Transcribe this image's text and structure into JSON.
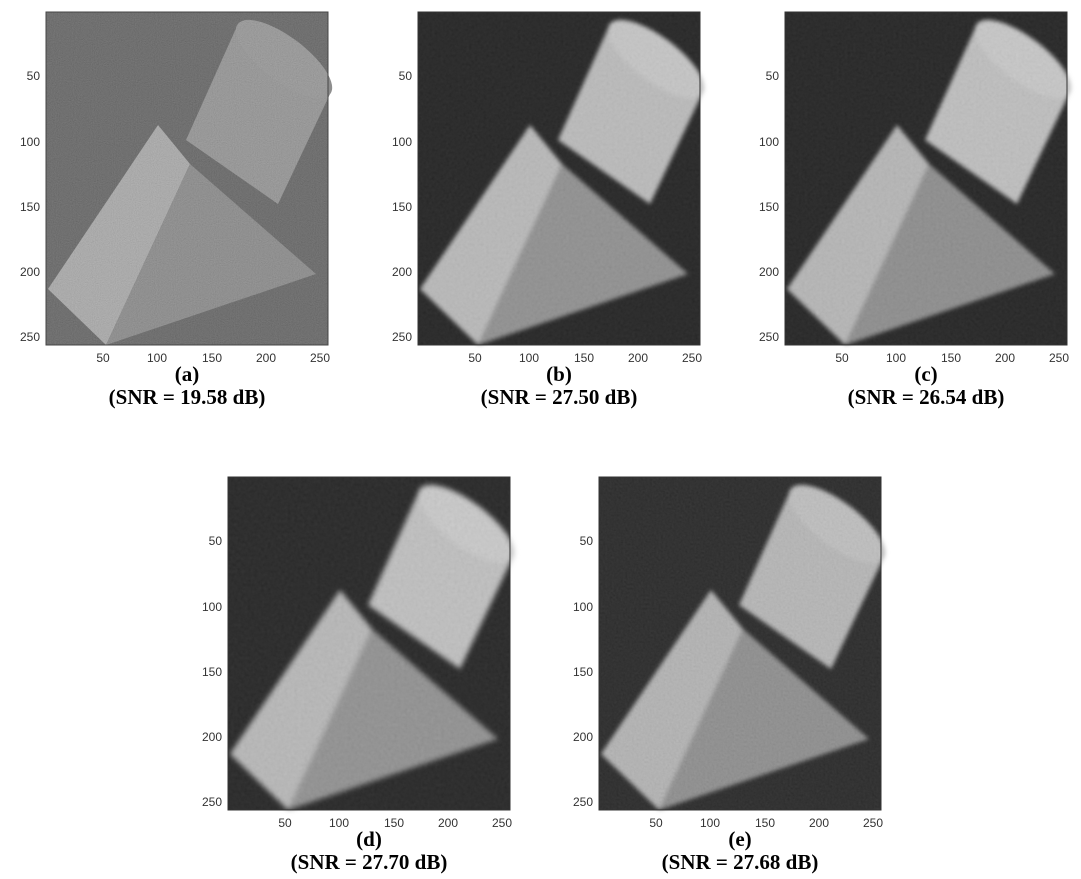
{
  "figure": {
    "axis_ticks": {
      "x": [
        "50",
        "100",
        "150",
        "200",
        "250"
      ],
      "y": [
        "50",
        "100",
        "150",
        "200",
        "250"
      ]
    },
    "panels": [
      {
        "id": "a",
        "label": "(a)",
        "snr": "(SNR = 19.58 dB)",
        "style": "noisy"
      },
      {
        "id": "b",
        "label": "(b)",
        "snr": "(SNR = 27.50 dB)",
        "style": "recon"
      },
      {
        "id": "c",
        "label": "(c)",
        "snr": "(SNR = 26.54 dB)",
        "style": "recon"
      },
      {
        "id": "d",
        "label": "(d)",
        "snr": "(SNR = 27.70 dB)",
        "style": "recon"
      },
      {
        "id": "e",
        "label": "(e)",
        "snr": "(SNR = 27.68 dB)",
        "style": "recon"
      }
    ]
  }
}
